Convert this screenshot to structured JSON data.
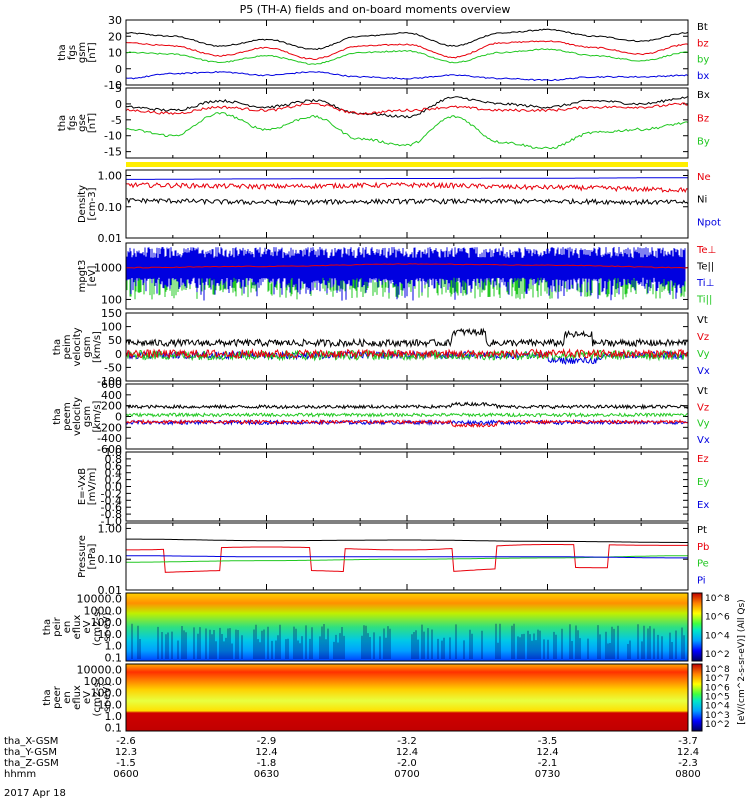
{
  "title": "P5 (TH-A) fields and on-board moments overview",
  "colors": {
    "black": "#000000",
    "red": "#e8000b",
    "green": "#22c822",
    "blue": "#0000e0",
    "yellow": "#ffee00"
  },
  "panels": [
    {
      "id": "fgs-gsm-1",
      "ylabel": [
        "tha",
        "fgs",
        "gsm",
        "[nT]"
      ],
      "ylim": [
        -10,
        30
      ],
      "yscale": "linear",
      "ticks": [
        "30",
        "20",
        "10",
        "0",
        "-10"
      ],
      "tick_values": [
        30,
        20,
        10,
        0,
        -10
      ],
      "legend": [
        {
          "label": "Bt",
          "color": "black"
        },
        {
          "label": "bz",
          "color": "red"
        },
        {
          "label": "by",
          "color": "green"
        },
        {
          "label": "bx",
          "color": "blue"
        }
      ]
    },
    {
      "id": "fgs-gse-2",
      "ylabel": [
        "tha",
        "fgs",
        "gse",
        "[nT]"
      ],
      "ylim": [
        -17,
        5
      ],
      "yscale": "linear",
      "ticks": [
        "5",
        "0",
        "-5",
        "-10",
        "-15"
      ],
      "tick_values": [
        5,
        0,
        -5,
        -10,
        -15
      ],
      "legend": [
        {
          "label": "Bx",
          "color": "black"
        },
        {
          "label": "Bz",
          "color": "red"
        },
        {
          "label": "By",
          "color": "green"
        }
      ]
    },
    {
      "id": "density",
      "ylabel": [
        "Density",
        "[cm-3]"
      ],
      "ylim": [
        0.01,
        1.5
      ],
      "yscale": "log",
      "ticks": [
        "1.00",
        "0.10",
        "0.01"
      ],
      "tick_values": [
        1.0,
        0.1,
        0.01
      ],
      "legend": [
        {
          "label": "Ne",
          "color": "red"
        },
        {
          "label": "Ni",
          "color": "black"
        },
        {
          "label": "Npot",
          "color": "blue"
        }
      ]
    },
    {
      "id": "temperature",
      "ylabel": [
        "mpgt3",
        "[eV]"
      ],
      "ylim": [
        50,
        6000
      ],
      "yscale": "log",
      "ticks": [
        "1000",
        "100"
      ],
      "tick_values": [
        1000,
        100
      ],
      "legend": [
        {
          "label": "Te⊥",
          "color": "red"
        },
        {
          "label": "Te||",
          "color": "black"
        },
        {
          "label": "Ti⊥",
          "color": "blue"
        },
        {
          "label": "Ti||",
          "color": "green"
        }
      ]
    },
    {
      "id": "ion-velocity",
      "ylabel": [
        "tha",
        "peim",
        "velocity",
        "gsm",
        "[km/s]"
      ],
      "ylim": [
        -100,
        150
      ],
      "yscale": "linear",
      "ticks": [
        "150",
        "100",
        "50",
        "0",
        "-50",
        "-100"
      ],
      "tick_values": [
        150,
        100,
        50,
        0,
        -50,
        -100
      ],
      "legend": [
        {
          "label": "Vt",
          "color": "black"
        },
        {
          "label": "Vz",
          "color": "red"
        },
        {
          "label": "Vy",
          "color": "green"
        },
        {
          "label": "Vx",
          "color": "blue"
        }
      ]
    },
    {
      "id": "electron-velocity",
      "ylabel": [
        "tha",
        "peem",
        "velocity",
        "gsm",
        "[km/s]"
      ],
      "ylim": [
        -600,
        600
      ],
      "yscale": "linear",
      "ticks": [
        "600",
        "400",
        "200",
        "0",
        "-200",
        "-400",
        "-600"
      ],
      "tick_values": [
        600,
        400,
        200,
        0,
        -200,
        -400,
        -600
      ],
      "legend": [
        {
          "label": "Vt",
          "color": "black"
        },
        {
          "label": "Vz",
          "color": "red"
        },
        {
          "label": "Vy",
          "color": "green"
        },
        {
          "label": "Vx",
          "color": "blue"
        }
      ]
    },
    {
      "id": "efield",
      "ylabel": [
        "E=-VxB",
        "[mV/m]"
      ],
      "ylim": [
        -1,
        1
      ],
      "yscale": "linear",
      "ticks": [
        "1.0",
        "0.8",
        "0.6",
        "0.4",
        "0.2",
        "0.0",
        "-0.2",
        "-0.4",
        "-0.6",
        "-0.8",
        "-1.0"
      ],
      "tick_values": [
        1,
        0.8,
        0.6,
        0.4,
        0.2,
        0,
        -0.2,
        -0.4,
        -0.6,
        -0.8,
        -1
      ],
      "legend": [
        {
          "label": "Ez",
          "color": "red"
        },
        {
          "label": "Ey",
          "color": "green"
        },
        {
          "label": "Ex",
          "color": "blue"
        }
      ]
    },
    {
      "id": "pressure",
      "ylabel": [
        "Pressure",
        "[nPa]"
      ],
      "ylim": [
        0.01,
        1.5
      ],
      "yscale": "log",
      "ticks": [
        "1.00",
        "0.10",
        "0.01"
      ],
      "tick_values": [
        1.0,
        0.1,
        0.01
      ],
      "legend": [
        {
          "label": "Pt",
          "color": "black"
        },
        {
          "label": "Pb",
          "color": "red"
        },
        {
          "label": "Pe",
          "color": "green"
        },
        {
          "label": "Pi",
          "color": "blue"
        }
      ]
    },
    {
      "id": "ion-spectrogram",
      "ylabel": [
        "tha",
        "peir",
        "en",
        "eflux",
        "eV",
        "(cm2-s-",
        "sr-eV)"
      ],
      "ylim": [
        0.05,
        30000
      ],
      "yscale": "log",
      "ticks": [
        "10000.0",
        "1000.0",
        "100.0",
        "10.0",
        "1.0",
        "0.1"
      ],
      "tick_values": [
        10000,
        1000,
        100,
        10,
        1,
        0.1
      ],
      "legend": []
    },
    {
      "id": "electron-spectrogram",
      "ylabel": [
        "tha",
        "peer",
        "en",
        "eflux",
        "eV",
        "(cm2-s-",
        "sr-eV)"
      ],
      "ylim": [
        0.05,
        30000
      ],
      "yscale": "log",
      "ticks": [
        "10000.0",
        "1000.0",
        "100.0",
        "10.0",
        "1.0",
        "0.1"
      ],
      "tick_values": [
        10000,
        1000,
        100,
        10,
        1,
        0.1
      ],
      "legend": []
    }
  ],
  "colorbar": {
    "label": "[eV/(cm^2-s-sr-eV)] (All Qs)",
    "ion_ticks": [
      "10^8",
      "10^6",
      "10^4",
      "10^2"
    ],
    "electron_ticks": [
      "10^8",
      "10^7",
      "10^6",
      "10^5",
      "10^4",
      "10^3",
      "10^2"
    ]
  },
  "chart_data": {
    "type": "line",
    "title": "P5 (TH-A) fields and on-board moments overview",
    "x": [
      "0600",
      "0630",
      "0700",
      "0730",
      "0800"
    ],
    "xlabel": "hhmm",
    "series": [
      {
        "name": "Bt",
        "panel": "fgs-gsm-1",
        "x": [
          "0600",
          "0610",
          "0620",
          "0630",
          "0640",
          "0650",
          "0700",
          "0710",
          "0720",
          "0730",
          "0740",
          "0750",
          "0800"
        ],
        "values": [
          22,
          20,
          14,
          18,
          12,
          20,
          22,
          14,
          22,
          24,
          20,
          17,
          22
        ]
      },
      {
        "name": "bz",
        "panel": "fgs-gsm-1",
        "x": [
          "0600",
          "0610",
          "0620",
          "0630",
          "0640",
          "0650",
          "0700",
          "0710",
          "0720",
          "0730",
          "0740",
          "0750",
          "0800"
        ],
        "values": [
          16,
          14,
          8,
          13,
          6,
          14,
          15,
          7,
          16,
          17,
          13,
          9,
          15
        ]
      },
      {
        "name": "by",
        "panel": "fgs-gsm-1",
        "x": [
          "0600",
          "0610",
          "0620",
          "0630",
          "0640",
          "0650",
          "0700",
          "0710",
          "0720",
          "0730",
          "0740",
          "0750",
          "0800"
        ],
        "values": [
          10,
          9,
          4,
          8,
          3,
          10,
          11,
          4,
          10,
          12,
          8,
          5,
          10
        ]
      },
      {
        "name": "bx",
        "panel": "fgs-gsm-1",
        "x": [
          "0600",
          "0610",
          "0620",
          "0630",
          "0640",
          "0650",
          "0700",
          "0710",
          "0720",
          "0730",
          "0740",
          "0750",
          "0800"
        ],
        "values": [
          -6,
          -3,
          -2,
          -4,
          -2,
          -5,
          -6,
          -4,
          -6,
          -7,
          -5,
          -5,
          -4
        ]
      },
      {
        "name": "Bx",
        "panel": "fgs-gse-2",
        "x": [
          "0600",
          "0610",
          "0620",
          "0630",
          "0640",
          "0650",
          "0700",
          "0710",
          "0720",
          "0730",
          "0740",
          "0750",
          "0800"
        ],
        "values": [
          -1,
          -2,
          1,
          -1,
          1,
          -3,
          -4,
          2,
          0,
          -1,
          1,
          0,
          2
        ]
      },
      {
        "name": "Bz",
        "panel": "fgs-gse-2",
        "x": [
          "0600",
          "0610",
          "0620",
          "0630",
          "0640",
          "0650",
          "0700",
          "0710",
          "0720",
          "0730",
          "0740",
          "0750",
          "0800"
        ],
        "values": [
          -2,
          -3,
          -1,
          -2,
          0,
          -3,
          -2,
          -1,
          -2,
          -2,
          -1,
          -1,
          0
        ]
      },
      {
        "name": "By",
        "panel": "fgs-gse-2",
        "x": [
          "0600",
          "0610",
          "0620",
          "0630",
          "0640",
          "0650",
          "0700",
          "0710",
          "0720",
          "0730",
          "0740",
          "0750",
          "0800"
        ],
        "values": [
          -8,
          -10,
          -3,
          -8,
          -4,
          -11,
          -13,
          -4,
          -12,
          -14,
          -9,
          -8,
          -6
        ]
      },
      {
        "name": "Ne",
        "panel": "density",
        "x": [
          "0600",
          "0630",
          "0700",
          "0730",
          "0800"
        ],
        "values": [
          0.5,
          0.45,
          0.5,
          0.42,
          0.35
        ]
      },
      {
        "name": "Ni",
        "panel": "density",
        "x": [
          "0600",
          "0630",
          "0700",
          "0730",
          "0800"
        ],
        "values": [
          0.16,
          0.14,
          0.15,
          0.15,
          0.14
        ]
      },
      {
        "name": "Npot",
        "panel": "density",
        "x": [
          "0600",
          "0630",
          "0700",
          "0730",
          "0800"
        ],
        "values": [
          0.75,
          0.78,
          0.8,
          0.82,
          0.85
        ]
      },
      {
        "name": "Te⊥",
        "panel": "temperature",
        "x": [
          "0600",
          "0630",
          "0700",
          "0730",
          "0800"
        ],
        "values": [
          1000,
          1100,
          1300,
          1200,
          1000
        ]
      },
      {
        "name": "Ti⊥",
        "panel": "temperature",
        "x": [
          "0600",
          "0630",
          "0700",
          "0730",
          "0800"
        ],
        "values": [
          2000,
          2000,
          2000,
          1900,
          2000
        ]
      },
      {
        "name": "Vt",
        "panel": "ion-velocity",
        "x": [
          "0600",
          "0630",
          "0700",
          "0730",
          "0800"
        ],
        "values": [
          40,
          35,
          45,
          60,
          40
        ]
      },
      {
        "name": "Vt",
        "panel": "electron-velocity",
        "x": [
          "0600",
          "0630",
          "0700",
          "0730",
          "0800"
        ],
        "values": [
          170,
          190,
          180,
          230,
          160
        ]
      },
      {
        "name": "Pt",
        "panel": "pressure",
        "x": [
          "0600",
          "0630",
          "0700",
          "0730",
          "0800"
        ],
        "values": [
          0.45,
          0.4,
          0.42,
          0.38,
          0.35
        ]
      },
      {
        "name": "Pb",
        "panel": "pressure",
        "x": [
          "0600",
          "0630",
          "0700",
          "0730",
          "0800"
        ],
        "values": [
          0.2,
          0.25,
          0.2,
          0.3,
          0.28
        ]
      },
      {
        "name": "Pe",
        "panel": "pressure",
        "x": [
          "0600",
          "0630",
          "0700",
          "0730",
          "0800"
        ],
        "values": [
          0.08,
          0.09,
          0.1,
          0.11,
          0.13
        ]
      },
      {
        "name": "Pi",
        "panel": "pressure",
        "x": [
          "0600",
          "0630",
          "0700",
          "0730",
          "0800"
        ],
        "values": [
          0.13,
          0.12,
          0.12,
          0.12,
          0.11
        ]
      }
    ]
  },
  "footer": {
    "rows": [
      {
        "label": "tha_X-GSM",
        "values": [
          "-2.6",
          "-2.9",
          "-3.2",
          "-3.5",
          "-3.7"
        ]
      },
      {
        "label": "tha_Y-GSM",
        "values": [
          "12.3",
          "12.4",
          "12.4",
          "12.4",
          "12.4"
        ]
      },
      {
        "label": "tha_Z-GSM",
        "values": [
          "-1.5",
          "-1.8",
          "-2.0",
          "-2.1",
          "-2.3"
        ]
      },
      {
        "label": "hhmm",
        "values": [
          "0600",
          "0630",
          "0700",
          "0730",
          "0800"
        ]
      }
    ],
    "date": "2017 Apr 18"
  }
}
